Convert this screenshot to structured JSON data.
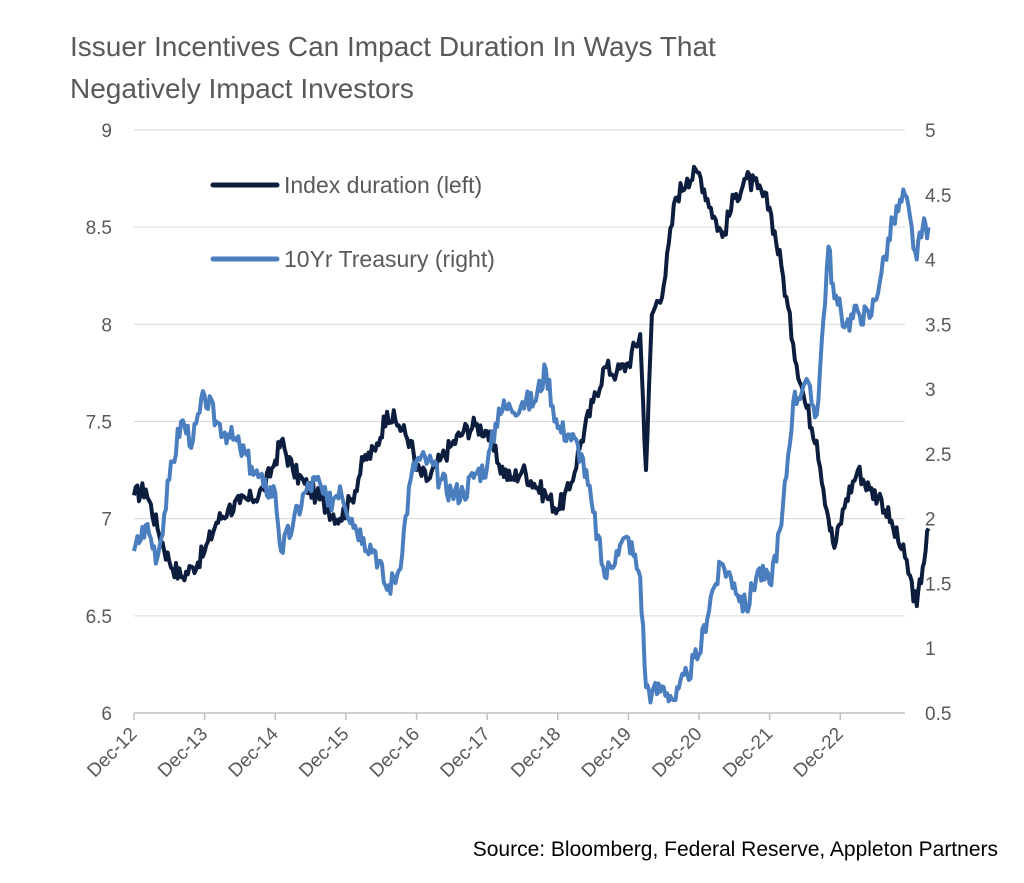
{
  "chart_data": {
    "type": "line",
    "title": "Issuer Incentives Can Impact Duration In Ways That Negatively Impact Investors",
    "source": "Source: Bloomberg, Federal Reserve, Appleton Partners",
    "x_range": [
      "2012-12",
      "2023-11"
    ],
    "x_tick_labels": [
      "Dec-12",
      "Dec-13",
      "Dec-14",
      "Dec-15",
      "Dec-16",
      "Dec-17",
      "Dec-18",
      "Dec-19",
      "Dec-20",
      "Dec-21",
      "Dec-22"
    ],
    "y_left": {
      "label": "",
      "ylim": [
        6,
        9
      ],
      "ticks": [
        "6",
        "6.5",
        "7",
        "7.5",
        "8",
        "8.5",
        "9"
      ]
    },
    "y_right": {
      "label": "",
      "ylim": [
        0.5,
        5
      ],
      "ticks": [
        "0.5",
        "1",
        "1.5",
        "2",
        "2.5",
        "3",
        "3.5",
        "4",
        "4.5",
        "5"
      ]
    },
    "grid": "horizontal",
    "legend_position": "top-left",
    "series": [
      {
        "name": "Index duration (left)",
        "axis": "left",
        "color": "#0d1d3e",
        "points": [
          [
            "2012-12",
            7.12
          ],
          [
            "2013-02",
            7.15
          ],
          [
            "2013-04",
            6.95
          ],
          [
            "2013-06",
            6.78
          ],
          [
            "2013-08",
            6.7
          ],
          [
            "2013-10",
            6.75
          ],
          [
            "2013-12",
            6.83
          ],
          [
            "2014-02",
            6.98
          ],
          [
            "2014-04",
            7.05
          ],
          [
            "2014-06",
            7.08
          ],
          [
            "2014-08",
            7.1
          ],
          [
            "2014-10",
            7.15
          ],
          [
            "2014-12",
            7.3
          ],
          [
            "2015-01",
            7.4
          ],
          [
            "2015-03",
            7.25
          ],
          [
            "2015-05",
            7.18
          ],
          [
            "2015-07",
            7.12
          ],
          [
            "2015-09",
            7.05
          ],
          [
            "2015-11",
            7.0
          ],
          [
            "2016-01",
            7.1
          ],
          [
            "2016-03",
            7.3
          ],
          [
            "2016-05",
            7.35
          ],
          [
            "2016-07",
            7.55
          ],
          [
            "2016-09",
            7.48
          ],
          [
            "2016-11",
            7.4
          ],
          [
            "2016-12",
            7.25
          ],
          [
            "2017-02",
            7.2
          ],
          [
            "2017-04",
            7.3
          ],
          [
            "2017-06",
            7.38
          ],
          [
            "2017-08",
            7.45
          ],
          [
            "2017-10",
            7.48
          ],
          [
            "2017-12",
            7.45
          ],
          [
            "2018-02",
            7.28
          ],
          [
            "2018-04",
            7.2
          ],
          [
            "2018-06",
            7.25
          ],
          [
            "2018-08",
            7.18
          ],
          [
            "2018-10",
            7.12
          ],
          [
            "2018-12",
            7.05
          ],
          [
            "2019-02",
            7.15
          ],
          [
            "2019-04",
            7.4
          ],
          [
            "2019-06",
            7.6
          ],
          [
            "2019-08",
            7.78
          ],
          [
            "2019-10",
            7.75
          ],
          [
            "2019-12",
            7.8
          ],
          [
            "2020-02",
            7.95
          ],
          [
            "2020-03",
            7.25
          ],
          [
            "2020-04",
            8.05
          ],
          [
            "2020-06",
            8.2
          ],
          [
            "2020-08",
            8.65
          ],
          [
            "2020-10",
            8.75
          ],
          [
            "2020-12",
            8.78
          ],
          [
            "2021-02",
            8.6
          ],
          [
            "2021-04",
            8.45
          ],
          [
            "2021-06",
            8.65
          ],
          [
            "2021-08",
            8.75
          ],
          [
            "2021-10",
            8.7
          ],
          [
            "2021-12",
            8.6
          ],
          [
            "2022-02",
            8.3
          ],
          [
            "2022-04",
            7.9
          ],
          [
            "2022-06",
            7.6
          ],
          [
            "2022-08",
            7.4
          ],
          [
            "2022-10",
            7.0
          ],
          [
            "2022-11",
            6.85
          ],
          [
            "2023-01",
            7.1
          ],
          [
            "2023-03",
            7.25
          ],
          [
            "2023-05",
            7.15
          ],
          [
            "2023-07",
            7.1
          ],
          [
            "2023-09",
            6.95
          ],
          [
            "2023-11",
            6.8
          ],
          [
            "2024-01",
            6.55
          ],
          [
            "2024-02",
            6.75
          ],
          [
            "2024-03",
            6.95
          ]
        ]
      },
      {
        "name": "10Yr Treasury (right)",
        "axis": "right",
        "color": "#4a7ebf",
        "points": [
          [
            "2012-12",
            1.75
          ],
          [
            "2013-02",
            1.95
          ],
          [
            "2013-04",
            1.7
          ],
          [
            "2013-06",
            2.3
          ],
          [
            "2013-08",
            2.75
          ],
          [
            "2013-10",
            2.6
          ],
          [
            "2013-12",
            2.95
          ],
          [
            "2014-02",
            2.75
          ],
          [
            "2014-04",
            2.65
          ],
          [
            "2014-06",
            2.55
          ],
          [
            "2014-08",
            2.4
          ],
          [
            "2014-10",
            2.25
          ],
          [
            "2014-12",
            2.2
          ],
          [
            "2015-01",
            1.75
          ],
          [
            "2015-03",
            1.95
          ],
          [
            "2015-05",
            2.2
          ],
          [
            "2015-07",
            2.3
          ],
          [
            "2015-09",
            2.1
          ],
          [
            "2015-11",
            2.25
          ],
          [
            "2016-01",
            2.0
          ],
          [
            "2016-03",
            1.85
          ],
          [
            "2016-05",
            1.75
          ],
          [
            "2016-07",
            1.45
          ],
          [
            "2016-09",
            1.6
          ],
          [
            "2016-11",
            2.3
          ],
          [
            "2016-12",
            2.45
          ],
          [
            "2017-02",
            2.45
          ],
          [
            "2017-04",
            2.3
          ],
          [
            "2017-06",
            2.2
          ],
          [
            "2017-08",
            2.2
          ],
          [
            "2017-10",
            2.35
          ],
          [
            "2017-12",
            2.4
          ],
          [
            "2018-02",
            2.85
          ],
          [
            "2018-04",
            2.85
          ],
          [
            "2018-06",
            2.9
          ],
          [
            "2018-08",
            2.9
          ],
          [
            "2018-10",
            3.15
          ],
          [
            "2018-12",
            2.7
          ],
          [
            "2019-02",
            2.65
          ],
          [
            "2019-04",
            2.5
          ],
          [
            "2019-06",
            2.05
          ],
          [
            "2019-08",
            1.55
          ],
          [
            "2019-10",
            1.75
          ],
          [
            "2019-12",
            1.85
          ],
          [
            "2020-02",
            1.55
          ],
          [
            "2020-03",
            0.7
          ],
          [
            "2020-04",
            0.65
          ],
          [
            "2020-06",
            0.7
          ],
          [
            "2020-08",
            0.6
          ],
          [
            "2020-10",
            0.8
          ],
          [
            "2020-12",
            0.95
          ],
          [
            "2021-02",
            1.4
          ],
          [
            "2021-04",
            1.65
          ],
          [
            "2021-06",
            1.5
          ],
          [
            "2021-08",
            1.3
          ],
          [
            "2021-10",
            1.6
          ],
          [
            "2021-12",
            1.5
          ],
          [
            "2022-02",
            1.95
          ],
          [
            "2022-04",
            2.9
          ],
          [
            "2022-06",
            3.05
          ],
          [
            "2022-08",
            2.8
          ],
          [
            "2022-10",
            4.1
          ],
          [
            "2022-11",
            3.7
          ],
          [
            "2023-01",
            3.5
          ],
          [
            "2023-03",
            3.6
          ],
          [
            "2023-05",
            3.55
          ],
          [
            "2023-07",
            3.9
          ],
          [
            "2023-09",
            4.3
          ],
          [
            "2023-11",
            4.5
          ],
          [
            "2024-01",
            4.0
          ],
          [
            "2024-02",
            4.25
          ],
          [
            "2024-03",
            4.25
          ]
        ]
      }
    ]
  }
}
